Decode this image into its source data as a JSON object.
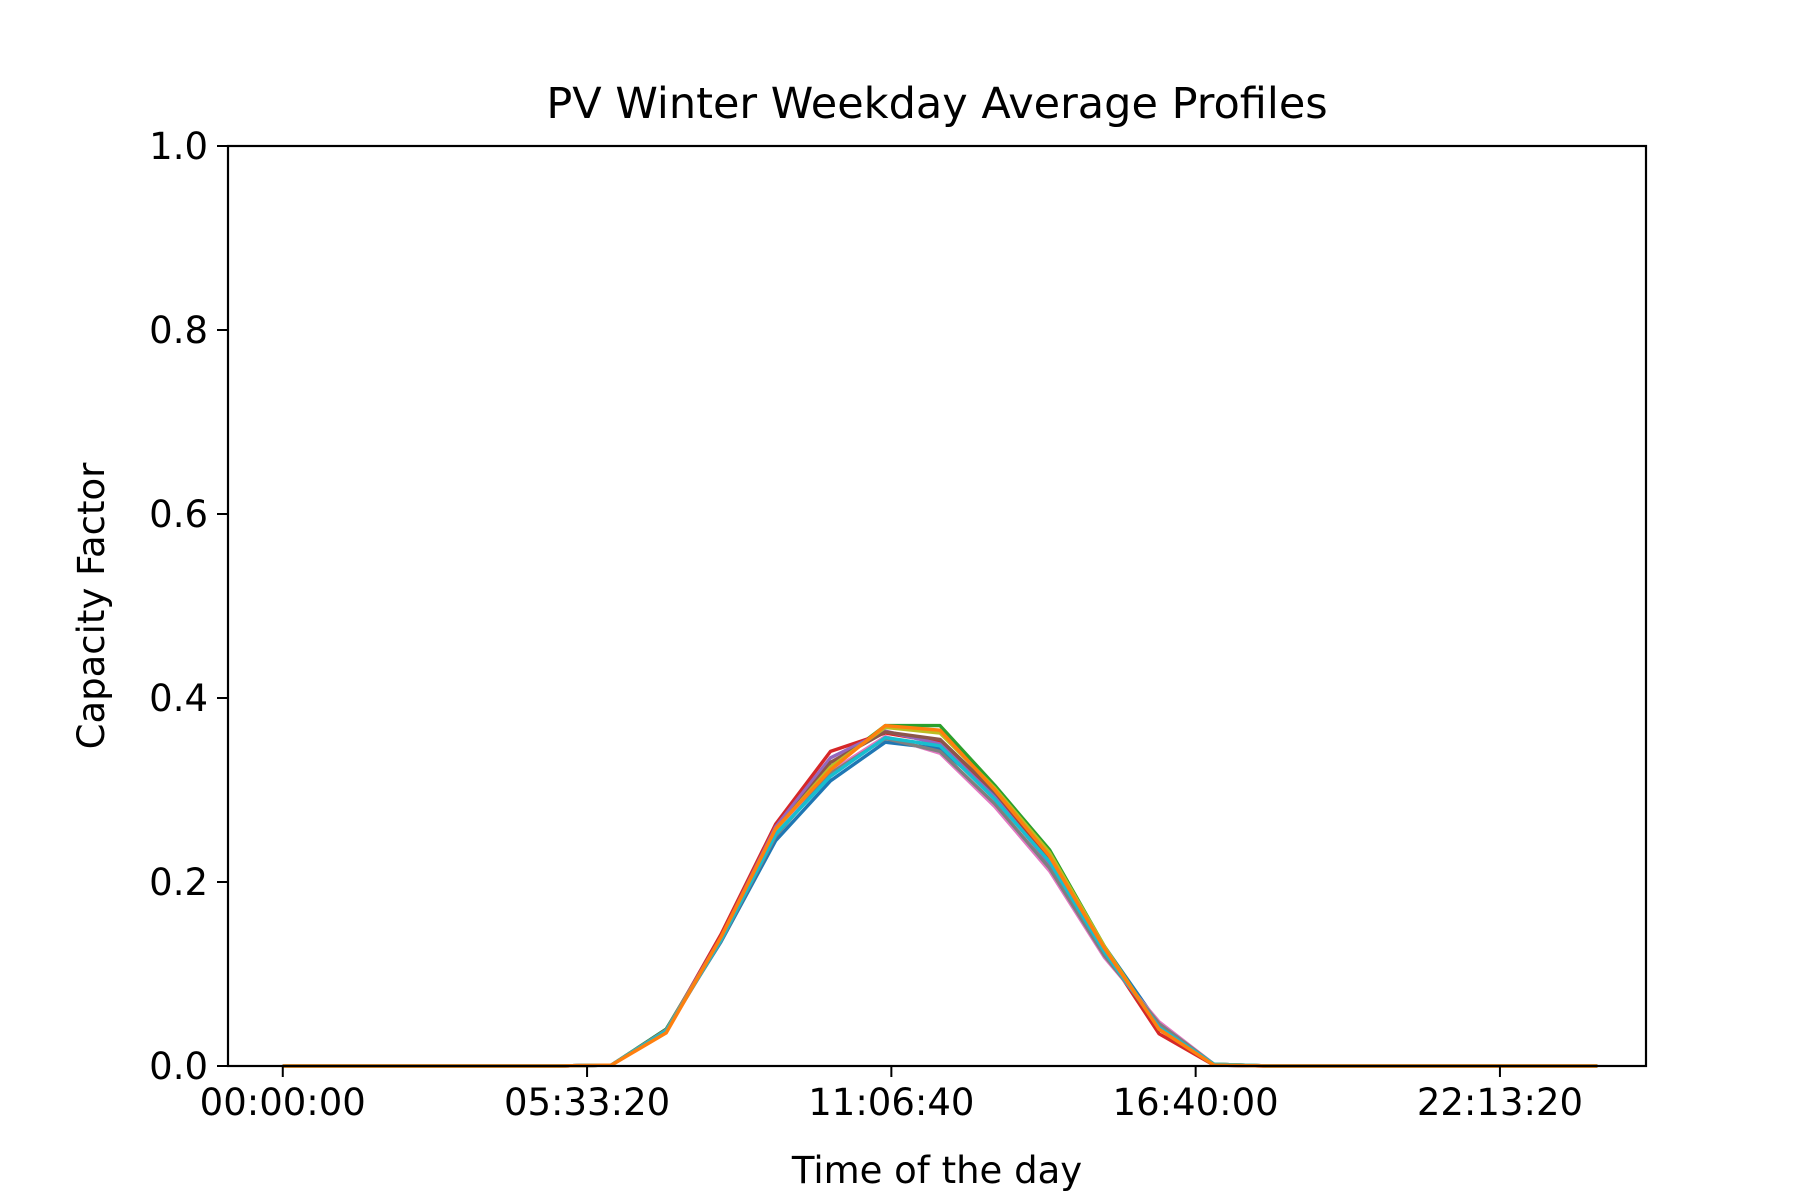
{
  "chart_data": {
    "type": "line",
    "title": "PV Winter Weekday Average Profiles",
    "xlabel": "Time of the day",
    "ylabel": "Capacity Factor",
    "xlim": [
      -3600,
      89600
    ],
    "ylim": [
      0,
      1.0
    ],
    "x_tick_values": [
      0,
      20000,
      40000,
      60000,
      80000
    ],
    "x_tick_labels": [
      "00:00:00",
      "05:33:20",
      "11:06:40",
      "16:40:00",
      "22:13:20"
    ],
    "y_tick_values": [
      0,
      0.2,
      0.4,
      0.6,
      0.8,
      1.0
    ],
    "y_tick_labels": [
      "0.0",
      "0.2",
      "0.4",
      "0.6",
      "0.8",
      "1.0"
    ],
    "grid": false,
    "legend": "none",
    "x": [
      0,
      3600,
      7200,
      10800,
      14400,
      18000,
      21600,
      25200,
      28800,
      32400,
      36000,
      39600,
      43200,
      46800,
      50400,
      54000,
      57600,
      61200,
      64800,
      68400,
      72000,
      75600,
      79200,
      82800,
      86400
    ],
    "series": [
      {
        "color": "#1f77b4",
        "values": [
          0,
          0,
          0,
          0,
          0,
          0,
          0.001,
          0.04,
          0.135,
          0.245,
          0.31,
          0.352,
          0.345,
          0.295,
          0.225,
          0.13,
          0.045,
          0.002,
          0,
          0,
          0,
          0,
          0,
          0,
          0
        ]
      },
      {
        "color": "#2ca02c",
        "values": [
          0,
          0,
          0,
          0,
          0,
          0,
          0.001,
          0.04,
          0.14,
          0.255,
          0.325,
          0.37,
          0.37,
          0.305,
          0.235,
          0.13,
          0.04,
          0.002,
          0,
          0,
          0,
          0,
          0,
          0,
          0
        ]
      },
      {
        "color": "#d62728",
        "values": [
          0,
          0,
          0,
          0,
          0,
          0,
          0.001,
          0.038,
          0.143,
          0.263,
          0.342,
          0.362,
          0.352,
          0.298,
          0.225,
          0.125,
          0.035,
          0.001,
          0,
          0,
          0,
          0,
          0,
          0,
          0
        ]
      },
      {
        "color": "#9467bd",
        "values": [
          0,
          0,
          0,
          0,
          0,
          0,
          0.001,
          0.039,
          0.14,
          0.26,
          0.335,
          0.364,
          0.35,
          0.292,
          0.22,
          0.12,
          0.045,
          0.001,
          0,
          0,
          0,
          0,
          0,
          0,
          0
        ]
      },
      {
        "color": "#8c564b",
        "values": [
          0,
          0,
          0,
          0,
          0,
          0,
          0.001,
          0.038,
          0.138,
          0.255,
          0.33,
          0.363,
          0.355,
          0.298,
          0.228,
          0.127,
          0.04,
          0.001,
          0,
          0,
          0,
          0,
          0,
          0,
          0
        ]
      },
      {
        "color": "#e377c2",
        "values": [
          0,
          0,
          0,
          0,
          0,
          0,
          0.001,
          0.038,
          0.137,
          0.252,
          0.32,
          0.358,
          0.34,
          0.282,
          0.212,
          0.118,
          0.048,
          0.002,
          0,
          0,
          0,
          0,
          0,
          0,
          0
        ]
      },
      {
        "color": "#7f7f7f",
        "values": [
          0,
          0,
          0,
          0,
          0,
          0,
          0.001,
          0.038,
          0.136,
          0.25,
          0.318,
          0.356,
          0.342,
          0.285,
          0.215,
          0.12,
          0.046,
          0.002,
          0,
          0,
          0,
          0,
          0,
          0,
          0
        ]
      },
      {
        "color": "#bcbd22",
        "values": [
          0,
          0,
          0,
          0,
          0,
          0,
          0.001,
          0.038,
          0.139,
          0.257,
          0.325,
          0.368,
          0.362,
          0.302,
          0.232,
          0.13,
          0.04,
          0.002,
          0,
          0,
          0,
          0,
          0,
          0,
          0
        ]
      },
      {
        "color": "#17becf",
        "values": [
          0,
          0,
          0,
          0,
          0,
          0,
          0.001,
          0.038,
          0.137,
          0.252,
          0.315,
          0.357,
          0.348,
          0.29,
          0.222,
          0.124,
          0.042,
          0.002,
          0,
          0,
          0,
          0,
          0,
          0,
          0
        ]
      },
      {
        "color": "#ff7f0e",
        "values": [
          0,
          0,
          0,
          0,
          0,
          0,
          0.001,
          0.036,
          0.14,
          0.258,
          0.322,
          0.37,
          0.365,
          0.3,
          0.228,
          0.128,
          0.04,
          0.001,
          0,
          0,
          0,
          0,
          0,
          0,
          0
        ]
      }
    ]
  }
}
